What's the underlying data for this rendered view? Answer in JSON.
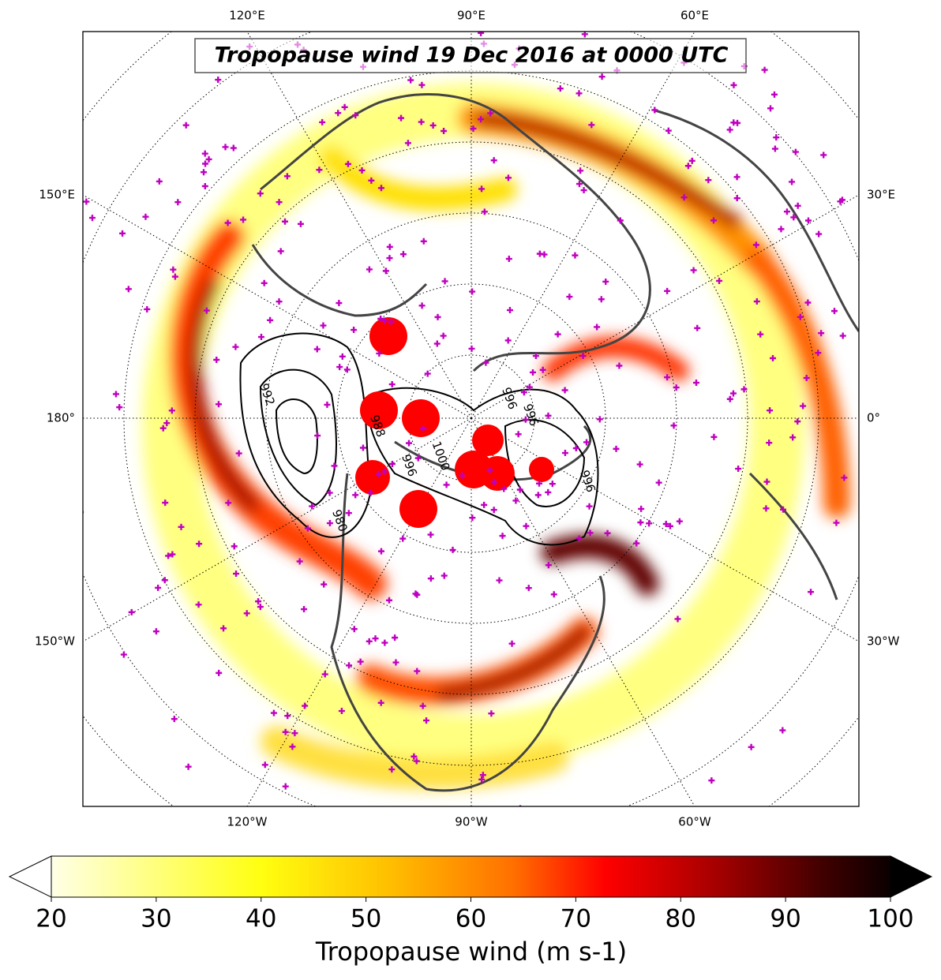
{
  "title": "Tropopause wind 19 Dec 2016 at 0000 UTC",
  "map": {
    "top_labels": [
      "120°E",
      "90°E",
      "60°E"
    ],
    "bottom_labels": [
      "120°W",
      "90°W",
      "60°W"
    ],
    "left_labels": [
      "150°E",
      "180°",
      "150°W"
    ],
    "right_labels": [
      "30°E",
      "0°",
      "30°W"
    ],
    "contour_labels": [
      "992",
      "996",
      "1000",
      "988",
      "980",
      "996",
      "996",
      "996"
    ]
  },
  "colorbar": {
    "label": "Tropopause wind (m s-1)",
    "range": [
      20,
      100
    ],
    "ticks": [
      20,
      30,
      40,
      50,
      60,
      70,
      80,
      90,
      100
    ]
  }
}
